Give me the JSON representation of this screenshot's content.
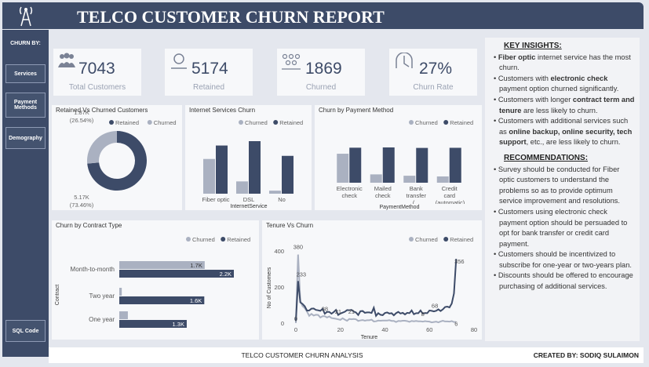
{
  "header": {
    "title": "TELCO CUSTOMER CHURN REPORT"
  },
  "sidebar": {
    "heading": "CHURN BY:",
    "buttons": [
      "Services",
      "Payment Methods",
      "Demography"
    ],
    "code_button": "SQL Code"
  },
  "kpis": [
    {
      "value": "7043",
      "label": "Total Customers"
    },
    {
      "value": "5174",
      "label": "Retained"
    },
    {
      "value": "1869",
      "label": "Churned"
    },
    {
      "value": "27%",
      "label": "Churn Rate"
    }
  ],
  "chart_data": [
    {
      "type": "donut",
      "title": "Retained Vs Churned Customers",
      "categories": [
        "Retained",
        "Churned"
      ],
      "values": [
        5174,
        1869
      ],
      "value_labels": [
        "5.17K",
        "1.87K"
      ],
      "percent_labels": [
        "(73.46%)",
        "(26.54%)"
      ],
      "colors": [
        "#3d4b68",
        "#aab1c1"
      ]
    },
    {
      "type": "bar",
      "title": "Internet Services Churn",
      "categories": [
        "Fiber optic",
        "DSL",
        "No"
      ],
      "xlabel": "InternetService",
      "series": [
        {
          "name": "Churned",
          "color": "#aab1c1",
          "values": [
            1297,
            459,
            113
          ]
        },
        {
          "name": "Retained",
          "color": "#3d4b68",
          "values": [
            1799,
            1962,
            1413
          ]
        }
      ]
    },
    {
      "type": "bar",
      "title": "Churn by Payment Method",
      "categories": [
        "Electronic check",
        "Mailed check",
        "Bank transfer (...",
        "Credit card (automatic)"
      ],
      "xlabel": "PaymentMethod",
      "series": [
        {
          "name": "Churned",
          "color": "#aab1c1",
          "values": [
            1071,
            308,
            258,
            232
          ]
        },
        {
          "name": "Retained",
          "color": "#3d4b68",
          "values": [
            1294,
            1304,
            1286,
            1290
          ]
        }
      ]
    },
    {
      "type": "hbar",
      "title": "Churn by Contract Type",
      "categories": [
        "Month-to-month",
        "Two year",
        "One year"
      ],
      "ylabel": "Contract",
      "series": [
        {
          "name": "Churned",
          "color": "#aab1c1",
          "values": [
            1655,
            48,
            166
          ],
          "value_labels": [
            "1.7K",
            null,
            null
          ]
        },
        {
          "name": "Retained",
          "color": "#3d4b68",
          "values": [
            2220,
            1647,
            1307
          ],
          "value_labels": [
            "2.2K",
            "1.6K",
            "1.3K"
          ]
        }
      ]
    },
    {
      "type": "line",
      "title": "Tenure Vs Churn",
      "xlabel": "Tenure",
      "ylabel": "No of Customers",
      "xlim": [
        0,
        80
      ],
      "xticks": [
        0,
        20,
        40,
        60,
        80
      ],
      "ylim": [
        0,
        400
      ],
      "yticks": [
        0,
        200,
        400
      ],
      "x": [
        0,
        1,
        2,
        3,
        4,
        5,
        6,
        7,
        8,
        9,
        10,
        11,
        12,
        13,
        14,
        15,
        16,
        17,
        18,
        19,
        20,
        21,
        22,
        23,
        24,
        25,
        26,
        27,
        28,
        29,
        30,
        31,
        32,
        33,
        34,
        35,
        36,
        37,
        38,
        39,
        40,
        41,
        42,
        43,
        44,
        45,
        46,
        47,
        48,
        49,
        50,
        51,
        52,
        53,
        54,
        55,
        56,
        57,
        58,
        59,
        60,
        61,
        62,
        63,
        64,
        65,
        66,
        67,
        68,
        69,
        70,
        71,
        72
      ],
      "series": [
        {
          "name": "Churned",
          "color": "#aab1c1",
          "values": [
            0,
            380,
            123,
            94,
            83,
            64,
            40,
            51,
            42,
            46,
            45,
            31,
            38,
            38,
            31,
            37,
            28,
            26,
            24,
            21,
            18,
            27,
            19,
            13,
            23,
            21,
            23,
            21,
            12,
            15,
            17,
            13,
            16,
            16,
            19,
            9,
            10,
            14,
            13,
            14,
            14,
            14,
            16,
            12,
            12,
            6,
            12,
            11,
            13,
            13,
            11,
            7,
            12,
            10,
            12,
            10,
            10,
            8,
            11,
            9,
            8,
            4,
            6,
            8,
            4,
            9,
            13,
            9,
            9,
            8,
            11,
            6,
            6
          ]
        },
        {
          "name": "Retained",
          "color": "#3d4b68",
          "values": [
            11,
            233,
            115,
            106,
            93,
            69,
            70,
            80,
            81,
            73,
            71,
            68,
            79,
            52,
            62,
            62,
            52,
            61,
            73,
            45,
            53,
            58,
            63,
            72,
            71,
            73,
            64,
            59,
            45,
            66,
            67,
            57,
            59,
            59,
            56,
            85,
            40,
            55,
            46,
            44,
            56,
            59,
            53,
            55,
            43,
            55,
            62,
            53,
            57,
            48,
            57,
            55,
            70,
            49,
            55,
            55,
            70,
            52,
            56,
            55,
            70,
            68,
            65,
            68,
            76,
            67,
            76,
            89,
            91,
            87,
            108,
            164,
            356
          ]
        }
      ]
    }
  ],
  "insights": {
    "title": "KEY INSIGHTS:",
    "items": [
      [
        {
          "text": "Fiber optic",
          "bold": true
        },
        {
          "text": " internet service has the most churn."
        }
      ],
      [
        {
          "text": "Customers with "
        },
        {
          "text": "electronic check",
          "bold": true
        },
        {
          "text": " payment option churned significantly."
        }
      ],
      [
        {
          "text": "Customers with longer "
        },
        {
          "text": "contract term and tenure",
          "bold": true
        },
        {
          "text": " are less likely to churn."
        }
      ],
      [
        {
          "text": "Customers with additional services such as "
        },
        {
          "text": "online backup, online security, tech support",
          "bold": true
        },
        {
          "text": ", etc., are less likely to churn."
        }
      ]
    ]
  },
  "recommendations": {
    "title": "RECOMMENDATIONS:",
    "items": [
      "Survey should be conducted for Fiber optic customers to understand the problems so as to provide optimum service improvement and resolutions.",
      "Customers using electronic check payment option should be persuaded to opt for bank transfer or credit card payment.",
      "Customers should be incentivized to subscribe for one-year or two-years plan.",
      "Discounts should be offered to encourage purchasing of additional services."
    ]
  },
  "footer": {
    "center": "TELCO CUSTOMER CHURN ANALYSIS",
    "right": "CREATED BY: SODIQ SULAIMON"
  }
}
